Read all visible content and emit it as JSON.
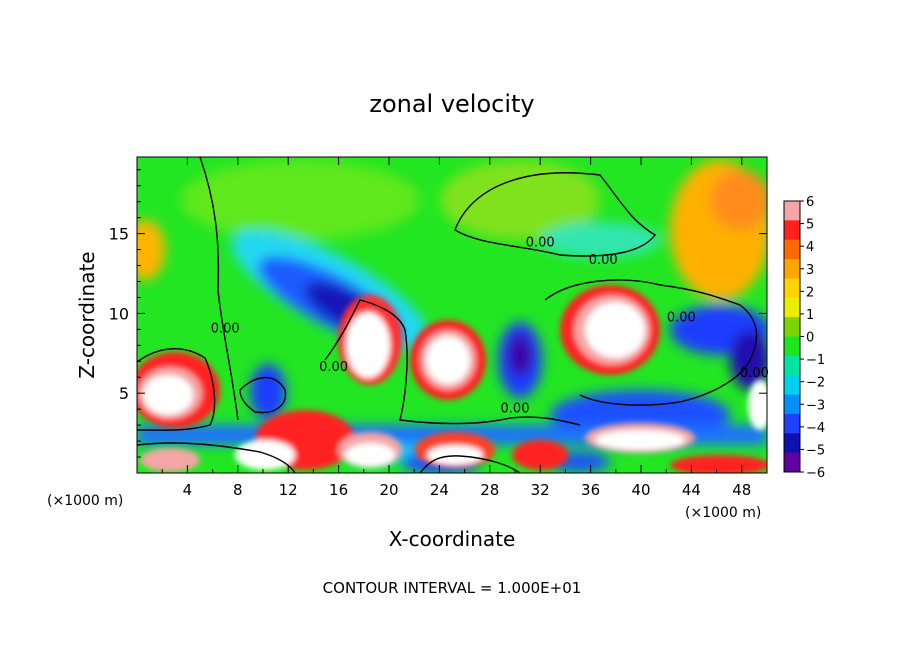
{
  "chart_data": {
    "type": "heatmap",
    "title": "zonal velocity",
    "xlabel": "X-coordinate",
    "ylabel": "Z-coordinate",
    "x_unit": "(×1000 m)",
    "x_unit_right": "(×1000 m)",
    "footer": "CONTOUR INTERVAL = 1.000E+01",
    "xlim": [
      0,
      50
    ],
    "ylim": [
      0,
      19.8
    ],
    "xticks": [
      "4",
      "8",
      "12",
      "16",
      "20",
      "24",
      "28",
      "32",
      "36",
      "40",
      "44",
      "48"
    ],
    "yticks": [
      "5",
      "10",
      "15"
    ],
    "colorbar": {
      "levels": [
        "6",
        "5",
        "4",
        "3",
        "2",
        "1",
        "0",
        "−1",
        "−2",
        "−3",
        "−4",
        "−5",
        "−6"
      ],
      "range": [
        -6,
        6
      ],
      "colors": [
        "#f4a6a6",
        "#ff2020",
        "#ff6a00",
        "#ffa500",
        "#ffd400",
        "#e8f000",
        "#7ad600",
        "#1ee61e",
        "#00e6a0",
        "#00d0f0",
        "#0090ff",
        "#2040ff",
        "#1010b0",
        "#6000a0"
      ]
    },
    "contour_labels": [
      {
        "text": "0.00",
        "x": 32,
        "y": 14.2
      },
      {
        "text": "0.00",
        "x": 37.0,
        "y": 13.1
      },
      {
        "text": "0.00",
        "x": 43.2,
        "y": 9.5
      },
      {
        "text": "0.00",
        "x": 49.0,
        "y": 6.0
      },
      {
        "text": "0.00",
        "x": 30.0,
        "y": 3.8
      },
      {
        "text": "0.00",
        "x": 7.0,
        "y": 8.8
      },
      {
        "text": "0.00",
        "x": 15.6,
        "y": 6.4
      }
    ]
  }
}
